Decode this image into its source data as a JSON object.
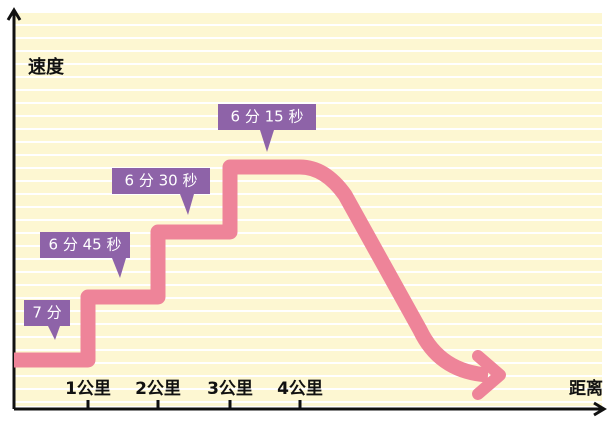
{
  "y_axis_label": "速度",
  "x_axis_label": "距离",
  "x_labels": [
    "1公里",
    "2公里",
    "3公里",
    "4公里"
  ],
  "callouts": [
    "7 分",
    "6 分 45 秒",
    "6 分 30 秒",
    "6 分 15 秒"
  ]
}
